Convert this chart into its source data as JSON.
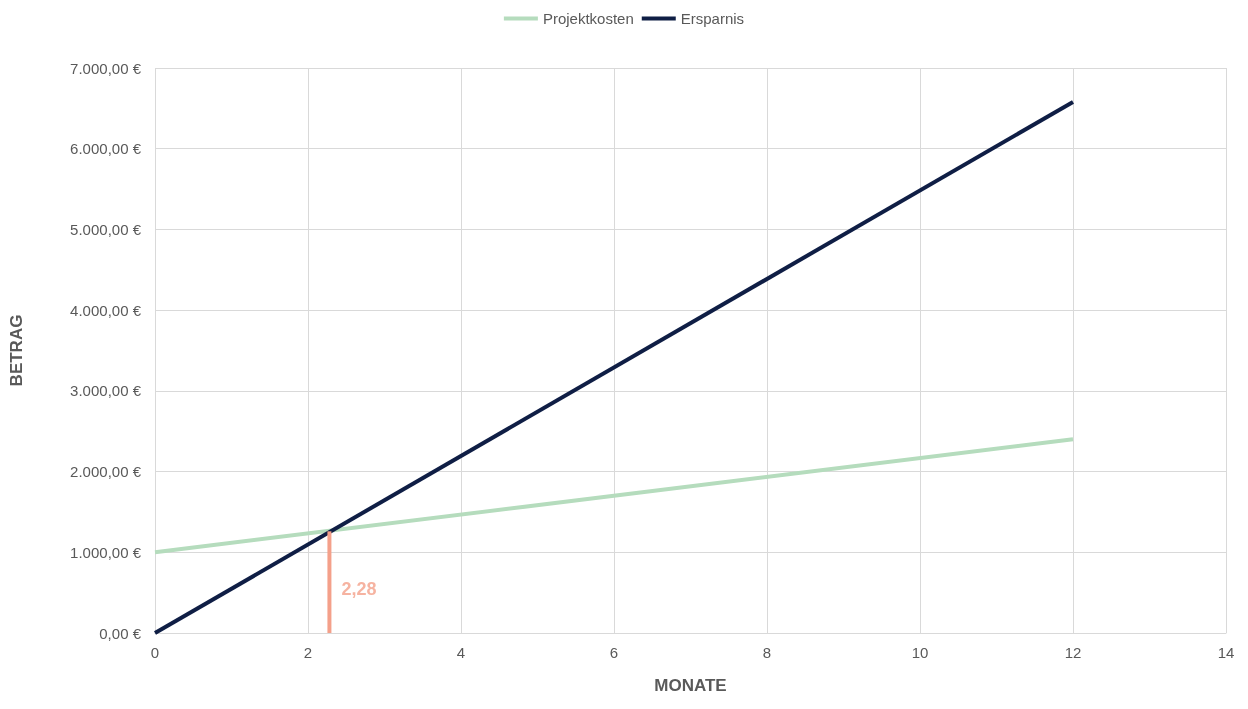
{
  "chart_data": {
    "type": "line",
    "xlabel": "MONATE",
    "ylabel": "BETRAG",
    "x": [
      0,
      12
    ],
    "series": [
      {
        "name": "Projektkosten",
        "color": "#b5dcbd",
        "values": [
          1000,
          2400
        ]
      },
      {
        "name": "Ersparnis",
        "color": "#0f1e45",
        "values": [
          0,
          6580
        ]
      },
      {
        "color": "#f4a08a",
        "x": [
          2.28,
          2.28
        ],
        "values": [
          0,
          1260
        ]
      }
    ],
    "annotations": [
      {
        "text": "2,28",
        "x": 2.28,
        "y": 550
      }
    ],
    "xlim": [
      0,
      14
    ],
    "xticks": [
      0,
      2,
      4,
      6,
      8,
      10,
      12,
      14
    ],
    "ylim": [
      0,
      7000
    ],
    "yticks": [
      {
        "value": 0,
        "label": "0,00 €"
      },
      {
        "value": 1000,
        "label": "1.000,00 €"
      },
      {
        "value": 2000,
        "label": "2.000,00 €"
      },
      {
        "value": 3000,
        "label": "3.000,00 €"
      },
      {
        "value": 4000,
        "label": "4.000,00 €"
      },
      {
        "value": 5000,
        "label": "5.000,00 €"
      },
      {
        "value": 6000,
        "label": "6.000,00 €"
      },
      {
        "value": 7000,
        "label": "7.000,00 €"
      }
    ],
    "grid": true,
    "legend": "top",
    "marker": "none",
    "line_style": "solid"
  }
}
